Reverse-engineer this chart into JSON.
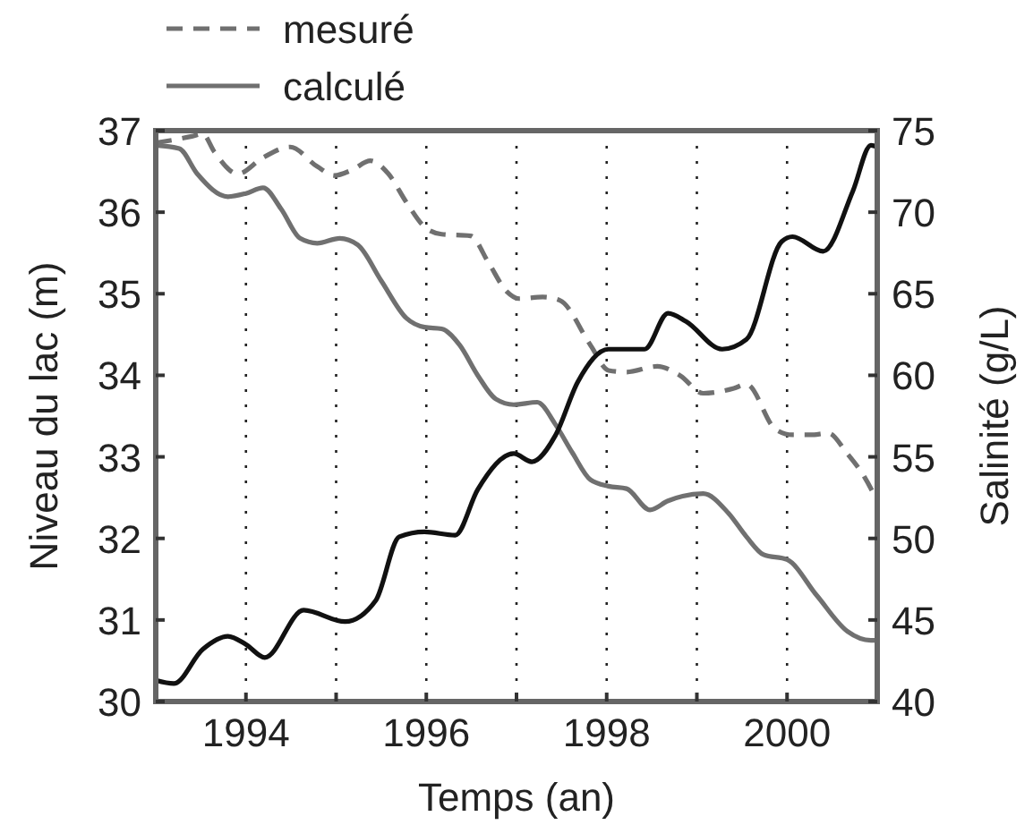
{
  "chart_data": {
    "type": "line",
    "xlabel": "Temps (an)",
    "ylabel": "Niveau du lac (m)",
    "y2label": "Salinité (g/L)",
    "xlim": [
      1993,
      2001
    ],
    "xticks": [
      {
        "value": 1994,
        "label": "1994"
      },
      {
        "value": 1995,
        "label": null
      },
      {
        "value": 1996,
        "label": "1996"
      },
      {
        "value": 1997,
        "label": null
      },
      {
        "value": 1998,
        "label": "1998"
      },
      {
        "value": 1999,
        "label": null
      },
      {
        "value": 2000,
        "label": "2000"
      }
    ],
    "ylim": [
      30,
      37
    ],
    "yticks": [
      30,
      31,
      32,
      33,
      34,
      35,
      36,
      37
    ],
    "y2lim": [
      40,
      75
    ],
    "y2ticks": [
      40,
      45,
      50,
      55,
      60,
      65,
      70,
      75
    ],
    "grid": "x",
    "legend": "top left",
    "marker": "none",
    "series": [
      {
        "name": "mesuré",
        "color": "#707070",
        "line_style": "dashed",
        "x": [
          1993.0,
          1993.4,
          1993.52,
          1993.65,
          1993.91,
          1994.19,
          1994.49,
          1994.79,
          1994.98,
          1995.18,
          1995.38,
          1995.58,
          1995.78,
          1995.98,
          1996.17,
          1996.49,
          1996.69,
          1996.89,
          1997.03,
          1997.29,
          1997.48,
          1997.82,
          1998.02,
          1998.22,
          1998.56,
          1998.81,
          1999.07,
          1999.41,
          1999.55,
          1999.87,
          2000.06,
          2000.26,
          2000.46,
          2000.66,
          2000.86,
          2001.0
        ],
        "values": [
          36.85,
          36.93,
          36.96,
          36.74,
          36.47,
          36.67,
          36.8,
          36.56,
          36.45,
          36.52,
          36.63,
          36.47,
          36.12,
          35.82,
          35.73,
          35.71,
          35.38,
          35.03,
          34.94,
          34.96,
          34.92,
          34.37,
          34.06,
          34.04,
          34.11,
          34.0,
          33.78,
          33.84,
          33.89,
          33.34,
          33.27,
          33.27,
          33.29,
          33.05,
          32.75,
          32.46
        ]
      },
      {
        "name": "calculé",
        "color": "#707070",
        "line_style": "solid",
        "x": [
          1993.0,
          1993.26,
          1993.46,
          1993.8,
          1994.0,
          1994.19,
          1994.39,
          1994.6,
          1994.79,
          1995.04,
          1995.24,
          1995.5,
          1995.78,
          1995.98,
          1996.17,
          1996.37,
          1996.57,
          1996.77,
          1996.97,
          1997.23,
          1997.43,
          1997.62,
          1997.82,
          1998.02,
          1998.22,
          1998.48,
          1998.68,
          1999.07,
          1999.35,
          1999.55,
          1999.74,
          2000.0,
          2000.33,
          2000.67,
          2000.93,
          2001.0
        ],
        "values": [
          36.82,
          36.78,
          36.47,
          36.19,
          36.23,
          36.3,
          36.04,
          35.68,
          35.62,
          35.68,
          35.6,
          35.16,
          34.7,
          34.59,
          34.57,
          34.37,
          34.0,
          33.71,
          33.64,
          33.67,
          33.4,
          33.05,
          32.72,
          32.64,
          32.61,
          32.35,
          32.46,
          32.55,
          32.31,
          32.02,
          31.8,
          31.74,
          31.3,
          30.86,
          30.75,
          30.75
        ]
      },
      {
        "color": "#111111",
        "line_style": "solid",
        "axis": "y2",
        "x": [
          1993.0,
          1993.2,
          1993.52,
          1993.8,
          1994.0,
          1994.21,
          1994.64,
          1995.1,
          1995.44,
          1995.7,
          1995.98,
          1996.32,
          1996.57,
          1996.97,
          1997.17,
          1997.43,
          1997.68,
          1998.02,
          1998.42,
          1998.68,
          1998.88,
          1999.28,
          1999.55,
          1999.94,
          2000.06,
          2000.4,
          2000.73,
          2000.93,
          2001.0
        ],
        "values": [
          41.3,
          41.1,
          43.2,
          44.0,
          43.5,
          42.7,
          45.6,
          44.9,
          46.2,
          50.1,
          50.4,
          50.2,
          53.0,
          55.2,
          54.7,
          56.3,
          59.6,
          61.6,
          61.6,
          63.8,
          63.3,
          61.6,
          62.2,
          68.2,
          68.5,
          67.6,
          71.3,
          74.1,
          74.0
        ]
      }
    ]
  }
}
